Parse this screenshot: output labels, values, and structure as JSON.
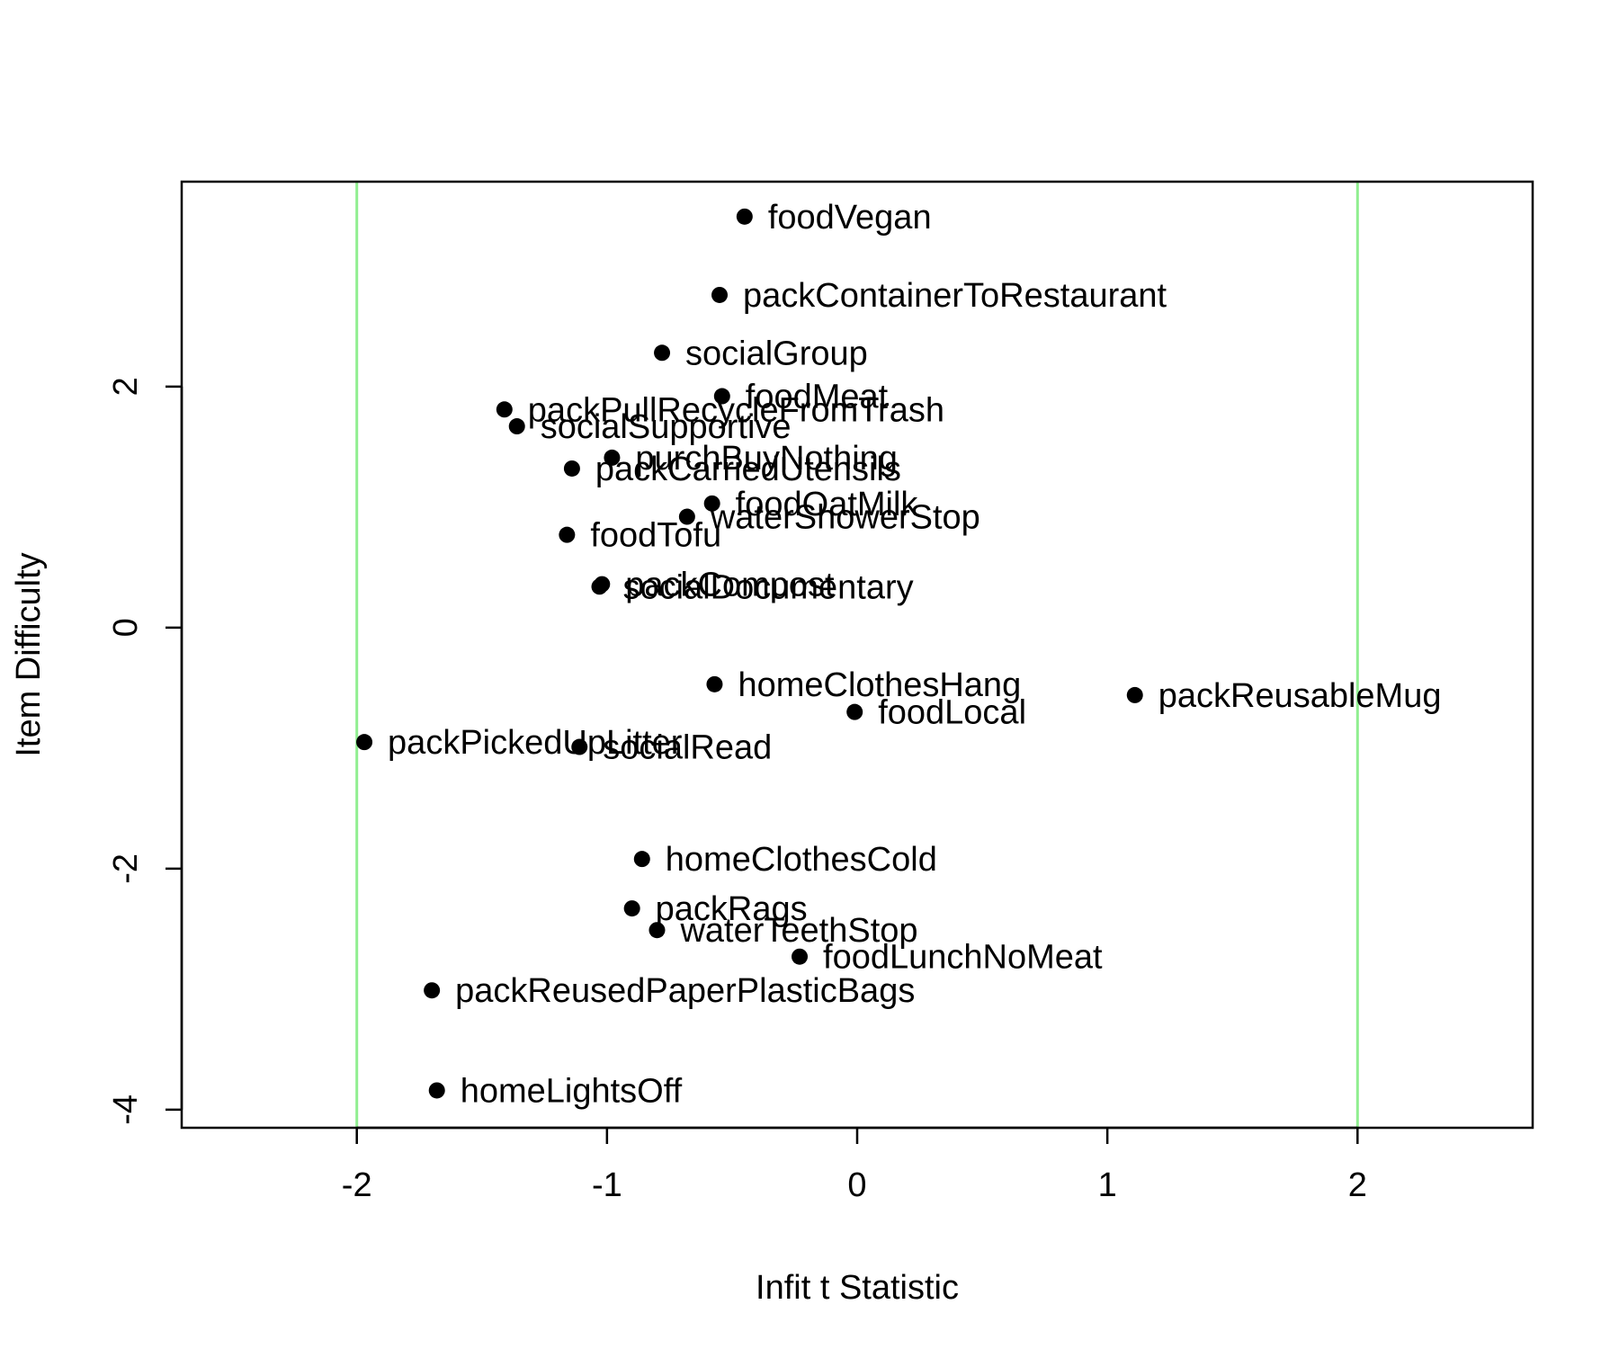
{
  "chart_data": {
    "type": "scatter",
    "title": "",
    "xlabel": "Infit t Statistic",
    "ylabel": "Item Difficulty",
    "xlim": [
      -2.7,
      2.7
    ],
    "ylim": [
      -4.15,
      3.7
    ],
    "xticks": [
      -2,
      -1,
      0,
      1,
      2
    ],
    "yticks": [
      -4,
      -2,
      0,
      2
    ],
    "xtick_labels": [
      "-2",
      "-1",
      "0",
      "1",
      "2"
    ],
    "ytick_labels": [
      "-4",
      "-2",
      "0",
      "2"
    ],
    "reference_lines": {
      "x": [
        -2,
        2
      ],
      "color": "#90ee90"
    },
    "grid": false,
    "points": [
      {
        "label": "foodVegan",
        "x": -0.45,
        "y": 3.41
      },
      {
        "label": "packContainerToRestaurant",
        "x": -0.55,
        "y": 2.76
      },
      {
        "label": "socialGroup",
        "x": -0.78,
        "y": 2.28
      },
      {
        "label": "foodMeat",
        "x": -0.54,
        "y": 1.92
      },
      {
        "label": "packPullRecycleFromTrash",
        "x": -1.41,
        "y": 1.81
      },
      {
        "label": "socialSupportive",
        "x": -1.36,
        "y": 1.67
      },
      {
        "label": "purchBuyNothing",
        "x": -0.98,
        "y": 1.41
      },
      {
        "label": "packCarriedUtensils",
        "x": -1.14,
        "y": 1.32
      },
      {
        "label": "foodOatMilk",
        "x": -0.58,
        "y": 1.03
      },
      {
        "label": "waterShowerStop",
        "x": -0.68,
        "y": 0.92
      },
      {
        "label": "foodTofu",
        "x": -1.16,
        "y": 0.77
      },
      {
        "label": "packCompost",
        "x": -1.02,
        "y": 0.36
      },
      {
        "label": "socialDocumentary",
        "x": -1.03,
        "y": 0.34
      },
      {
        "label": "homeClothesHang",
        "x": -0.57,
        "y": -0.47
      },
      {
        "label": "packReusableMug",
        "x": 1.11,
        "y": -0.56
      },
      {
        "label": "foodLocal",
        "x": -0.01,
        "y": -0.7
      },
      {
        "label": "packPickedUpLitter",
        "x": -1.97,
        "y": -0.95
      },
      {
        "label": "socialRead",
        "x": -1.11,
        "y": -0.99
      },
      {
        "label": "homeClothesCold",
        "x": -0.86,
        "y": -1.92
      },
      {
        "label": "packRags",
        "x": -0.9,
        "y": -2.33
      },
      {
        "label": "waterTeethStop",
        "x": -0.8,
        "y": -2.51
      },
      {
        "label": "foodLunchNoMeat",
        "x": -0.23,
        "y": -2.73
      },
      {
        "label": "packReusedPaperPlasticBags",
        "x": -1.7,
        "y": -3.01
      },
      {
        "label": "homeLightsOff",
        "x": -1.68,
        "y": -3.84
      }
    ]
  }
}
